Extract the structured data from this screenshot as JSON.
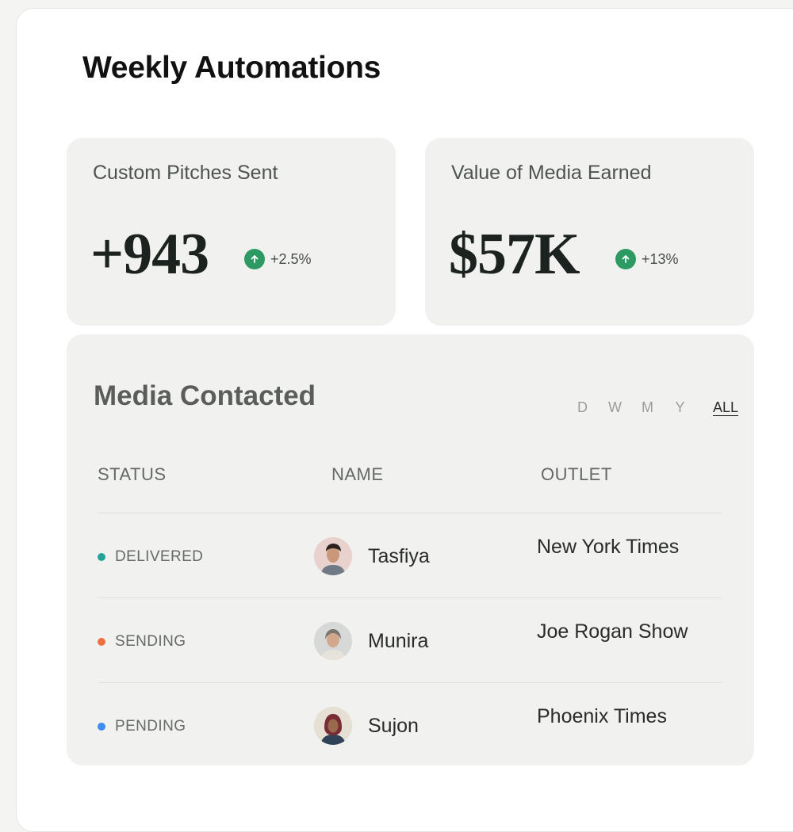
{
  "title": "Weekly Automations",
  "stats": [
    {
      "label": "Custom Pitches Sent",
      "value": "+943",
      "change": "+2.5%",
      "icon": "arrow-up-icon",
      "color": "#2e9a63"
    },
    {
      "label": "Value of Media Earned",
      "value": "$57K",
      "change": "+13%",
      "icon": "arrow-up-icon",
      "color": "#2e9a63"
    }
  ],
  "media": {
    "title": "Media Contacted",
    "filters": [
      "D",
      "W",
      "M",
      "Y",
      "ALL"
    ],
    "selected_filter": "ALL",
    "columns": [
      "STATUS",
      "NAME",
      "OUTLET"
    ],
    "rows": [
      {
        "status": "DELIVERED",
        "status_color": "#23a39a",
        "name": "Tasfiya",
        "outlet": "New York Times",
        "avatar": "avatar-icon"
      },
      {
        "status": "SENDING",
        "status_color": "#f0703f",
        "name": "Munira",
        "outlet": "Joe Rogan Show",
        "avatar": "avatar-icon"
      },
      {
        "status": "PENDING",
        "status_color": "#3d8cf2",
        "name": "Sujon",
        "outlet": "Phoenix Times",
        "avatar": "avatar-icon"
      }
    ]
  }
}
